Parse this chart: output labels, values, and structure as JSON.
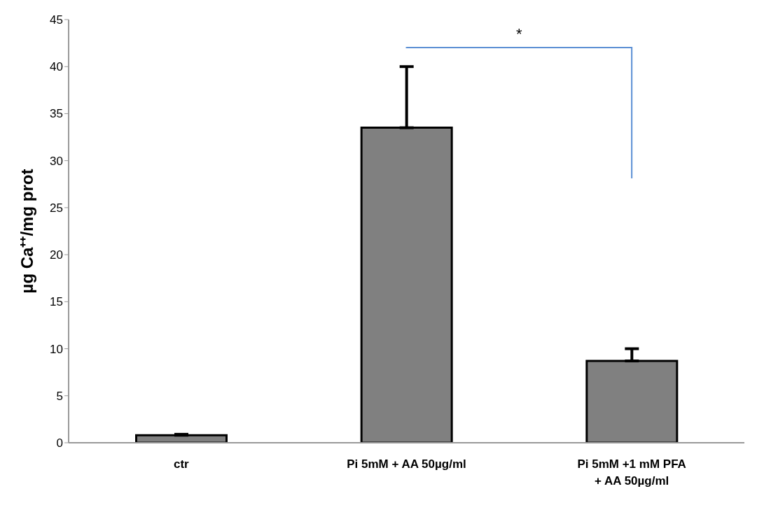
{
  "chart_data": {
    "type": "bar",
    "categories": [
      "ctr",
      "Pi 5mM + AA 50µg/ml",
      "Pi 5mM +1 mM PFA\n+ AA 50µg/ml"
    ],
    "values": [
      0.8,
      33.5,
      8.7
    ],
    "errors": [
      [
        0.8,
        0.9
      ],
      [
        33.5,
        40.0
      ],
      [
        8.7,
        10.0
      ]
    ],
    "color": "#808080",
    "ylabel": "µg Ca⁺⁺/mg prot",
    "ylim": [
      0,
      45
    ],
    "yticks": [
      0,
      5,
      10,
      15,
      20,
      25,
      30,
      35,
      40,
      45
    ],
    "annotations": [
      "*"
    ],
    "grid": false,
    "legend": false
  }
}
